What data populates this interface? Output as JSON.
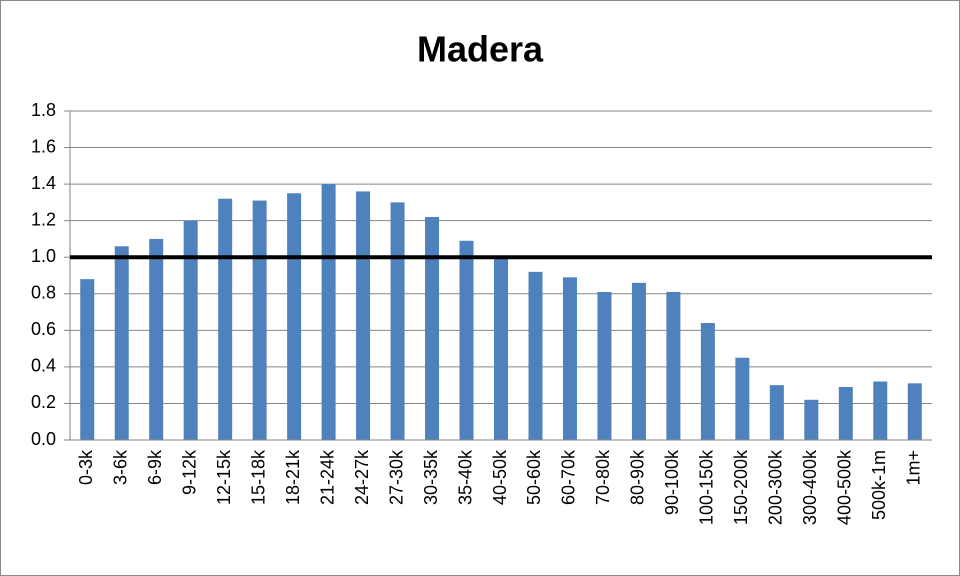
{
  "chart_data": {
    "type": "bar",
    "title": "Madera",
    "categories": [
      "0-3k",
      "3-6k",
      "6-9k",
      "9-12k",
      "12-15k",
      "15-18k",
      "18-21k",
      "21-24k",
      "24-27k",
      "27-30k",
      "30-35k",
      "35-40k",
      "40-50k",
      "50-60k",
      "60-70k",
      "70-80k",
      "80-90k",
      "90-100k",
      "100-150k",
      "150-200k",
      "200-300k",
      "300-400k",
      "400-500k",
      "500k-1m",
      "1m+"
    ],
    "values": [
      0.88,
      1.06,
      1.1,
      1.2,
      1.32,
      1.31,
      1.35,
      1.4,
      1.36,
      1.3,
      1.22,
      1.09,
      1.0,
      0.92,
      0.89,
      0.81,
      0.86,
      0.81,
      0.64,
      0.45,
      0.3,
      0.22,
      0.29,
      0.32,
      0.31
    ],
    "color": "#4f81bd",
    "ylim": [
      0,
      1.8
    ],
    "yticks": [
      {
        "value": 0,
        "label": "0.0"
      },
      0.2,
      0.4,
      0.6,
      0.8,
      {
        "value": 1,
        "label": "1.0"
      },
      1.2,
      1.4,
      1.6,
      1.8
    ],
    "grid": true,
    "hline": {
      "value": 1,
      "color": "#000000"
    }
  }
}
